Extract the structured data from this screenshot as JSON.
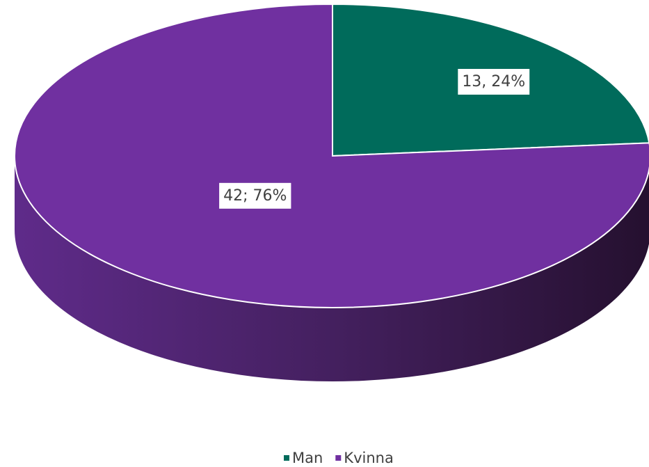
{
  "chart_data": {
    "type": "pie",
    "categories": [
      "Man",
      "Kvinna"
    ],
    "values": [
      13,
      42
    ],
    "value_labels": [
      "13, 24%",
      "42; 76%"
    ],
    "colors": [
      "#006b5b",
      "#7030a0"
    ],
    "legend": "bottom"
  }
}
